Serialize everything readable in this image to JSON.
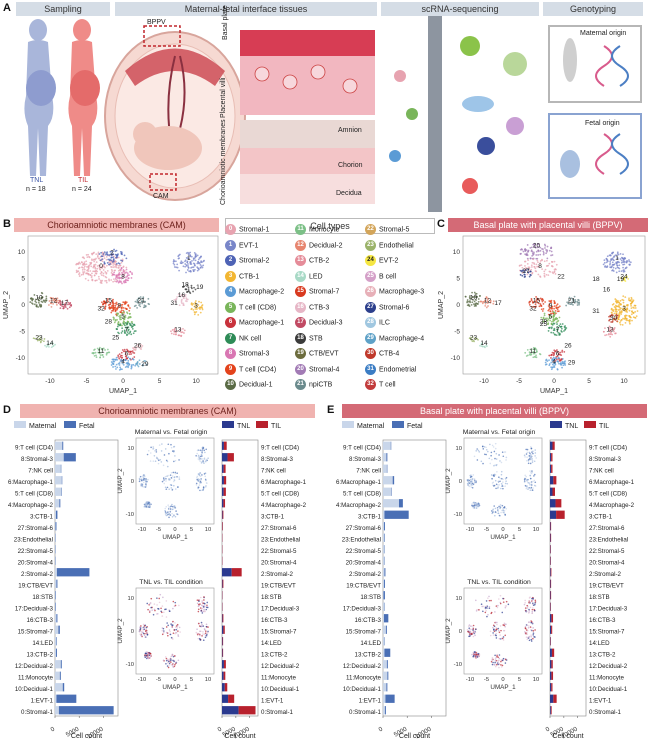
{
  "panelA": {
    "letter": "A",
    "headers": [
      "Sampling",
      "Maternal-fetal interface tissues",
      "scRNA-sequencing",
      "Genotyping"
    ],
    "tnl_label": "TNL",
    "tnl_n": "n = 18",
    "til_label": "TIL",
    "til_n": "n = 24",
    "bppv": "BPPV",
    "cam": "CAM",
    "basal_plate": "Basal plate",
    "placental_villi": "Placental villi",
    "chorioamniotic": "Chorioamniotic membranes",
    "amnion": "Amnion",
    "chorion": "Chorion",
    "decidua": "Decidua",
    "maternal_origin": "Maternal origin",
    "fetal_origin": "Fetal origin"
  },
  "panelB": {
    "letter": "B",
    "title": "Chorioamniotic membranes (CAM)",
    "xlabel": "UMAP_1",
    "ylabel": "UMAP_2",
    "xticks": [
      "-10",
      "-5",
      "0",
      "5",
      "10"
    ],
    "yticks": [
      "10",
      "5",
      "0",
      "-5",
      "-10"
    ],
    "cluster_labels": [
      {
        "t": "0"
      },
      {
        "t": "2"
      },
      {
        "t": "8"
      },
      {
        "t": "1"
      },
      {
        "t": "10"
      },
      {
        "t": "12"
      },
      {
        "t": "17"
      },
      {
        "t": "15"
      },
      {
        "t": "9"
      },
      {
        "t": "32"
      },
      {
        "t": "5"
      },
      {
        "t": "28"
      },
      {
        "t": "7"
      },
      {
        "t": "21"
      },
      {
        "t": "31"
      },
      {
        "t": "16"
      },
      {
        "t": "3"
      },
      {
        "t": "18"
      },
      {
        "t": "19"
      },
      {
        "t": "13"
      },
      {
        "t": "23"
      },
      {
        "t": "14"
      },
      {
        "t": "11"
      },
      {
        "t": "26"
      },
      {
        "t": "6"
      },
      {
        "t": "4"
      },
      {
        "t": "29"
      },
      {
        "t": "25"
      }
    ]
  },
  "legend": {
    "title": "Cell types",
    "items": [
      {
        "n": "0",
        "label": "Stromal-1",
        "color": "#e7a3b0"
      },
      {
        "n": "1",
        "label": "EVT-1",
        "color": "#7986c9"
      },
      {
        "n": "2",
        "label": "Stromal-2",
        "color": "#4e63b5"
      },
      {
        "n": "3",
        "label": "CTB-1",
        "color": "#f2b632"
      },
      {
        "n": "4",
        "label": "Macrophage-2",
        "color": "#5b9bd5"
      },
      {
        "n": "5",
        "label": "T cell (CD8)",
        "color": "#79b55a"
      },
      {
        "n": "6",
        "label": "Macrophage-1",
        "color": "#c8323c"
      },
      {
        "n": "7",
        "label": "NK cell",
        "color": "#2e8b57"
      },
      {
        "n": "8",
        "label": "Stromal-3",
        "color": "#d977b3"
      },
      {
        "n": "9",
        "label": "T cell (CD4)",
        "color": "#e3431c"
      },
      {
        "n": "10",
        "label": "Decidual-1",
        "color": "#5a6b45"
      },
      {
        "n": "11",
        "label": "Monocyte",
        "color": "#7cc087"
      },
      {
        "n": "12",
        "label": "Decidual-2",
        "color": "#e78670"
      },
      {
        "n": "13",
        "label": "CTB-2",
        "color": "#e58c99"
      },
      {
        "n": "14",
        "label": "LED",
        "color": "#a8d9c6"
      },
      {
        "n": "15",
        "label": "Stromal-7",
        "color": "#d8391f"
      },
      {
        "n": "16",
        "label": "CTB-3",
        "color": "#e6b6c6"
      },
      {
        "n": "17",
        "label": "Decidual-3",
        "color": "#c14a63"
      },
      {
        "n": "18",
        "label": "STB",
        "color": "#3b3b3b"
      },
      {
        "n": "19",
        "label": "CTB/EVT",
        "color": "#6d6d3e"
      },
      {
        "n": "20",
        "label": "Stromal-4",
        "color": "#a27bb5"
      },
      {
        "n": "21",
        "label": "npiCTB",
        "color": "#6b8b8d"
      },
      {
        "n": "22",
        "label": "Stromal-5",
        "color": "#d3a55a"
      },
      {
        "n": "23",
        "label": "Endothelial",
        "color": "#9bb36a"
      },
      {
        "n": "24",
        "label": "EVT-2",
        "color": "#f5e642"
      },
      {
        "n": "25",
        "label": "B cell",
        "color": "#d4a0c8"
      },
      {
        "n": "26",
        "label": "Macrophage-3",
        "color": "#e7b0b8"
      },
      {
        "n": "27",
        "label": "Stromal-6",
        "color": "#2c3f8c"
      },
      {
        "n": "28",
        "label": "ILC",
        "color": "#a0c7e0"
      },
      {
        "n": "29",
        "label": "Macrophage-4",
        "color": "#5ea1c7"
      },
      {
        "n": "30",
        "label": "CTB-4",
        "color": "#c0392b"
      },
      {
        "n": "31",
        "label": "Endometrial",
        "color": "#3b7dc4"
      },
      {
        "n": "32",
        "label": "T cell",
        "color": "#c23b3b"
      }
    ]
  },
  "panelC": {
    "letter": "C",
    "title": "Basal plate with placental villi (BPPV)",
    "xlabel": "UMAP_1",
    "ylabel": "UMAP_2",
    "xticks": [
      "-10",
      "-5",
      "0",
      "5",
      "10"
    ],
    "yticks": [
      "10",
      "5",
      "0",
      "-5",
      "-10"
    ],
    "cluster_labels": [
      {
        "t": "20"
      },
      {
        "t": "1"
      },
      {
        "t": "27"
      },
      {
        "t": "8"
      },
      {
        "t": "22"
      },
      {
        "t": "24"
      },
      {
        "t": "18"
      },
      {
        "t": "19"
      },
      {
        "t": "16"
      },
      {
        "t": "10"
      },
      {
        "t": "12"
      },
      {
        "t": "17"
      },
      {
        "t": "15"
      },
      {
        "t": "21"
      },
      {
        "t": "9"
      },
      {
        "t": "32"
      },
      {
        "t": "5"
      },
      {
        "t": "25"
      },
      {
        "t": "28"
      },
      {
        "t": "7"
      },
      {
        "t": "31"
      },
      {
        "t": "3"
      },
      {
        "t": "30"
      },
      {
        "t": "13"
      },
      {
        "t": "23"
      },
      {
        "t": "14"
      },
      {
        "t": "11"
      },
      {
        "t": "26"
      },
      {
        "t": "6"
      },
      {
        "t": "4"
      },
      {
        "t": "29"
      }
    ]
  },
  "panelD": {
    "letter": "D",
    "title": "Chorioamniotic membranes (CAM)",
    "legend_maternal": "Maternal",
    "legend_fetal": "Fetal",
    "legend_tnl": "TNL",
    "legend_til": "TIL",
    "umap_top_title": "Maternal vs. Fetal origin",
    "umap_bottom_title": "TNL vs. TIL condition",
    "xlabel": "Cell count",
    "umap_x": "UMAP_1",
    "umap_y": "UMAP_2",
    "xticks": [
      "0",
      "5000",
      "10000"
    ]
  },
  "panelE": {
    "letter": "E",
    "title": "Basal plate with placental villi (BPPV)",
    "legend_maternal": "Maternal",
    "legend_fetal": "Fetal",
    "legend_tnl": "TNL",
    "legend_til": "TIL",
    "umap_top_title": "Maternal vs. Fetal origin",
    "umap_bottom_title": "TNL vs. TIL condition",
    "xlabel": "Cell count",
    "umap_x": "UMAP_1",
    "umap_y": "UMAP_2",
    "xticks": [
      "0",
      "5000",
      "10000"
    ]
  },
  "chart_data": [
    {
      "type": "bar",
      "title": "Chorioamniotic membranes (CAM) — Maternal vs Fetal",
      "orientation": "horizontal",
      "categories": [
        "9:T cell (CD4)",
        "8:Stromal-3",
        "7:NK cell",
        "6:Macrophage-1",
        "5:T cell (CD8)",
        "4:Macrophage-2",
        "3:CTB-1",
        "27:Stromal-6",
        "23:Endothelial",
        "22:Stromal-5",
        "20:Stromal-4",
        "2:Stromal-2",
        "19:CTB/EVT",
        "18:STB",
        "17:Decidual-3",
        "16:CTB-3",
        "15:Stromal-7",
        "14:LED",
        "13:CTB-2",
        "12:Decidual-2",
        "11:Monocyte",
        "10:Decidual-1",
        "1:EVT-1",
        "0:Stromal-1"
      ],
      "series": [
        {
          "name": "Maternal",
          "color": "#c9d6ea",
          "values": [
            1500,
            1800,
            1200,
            1400,
            1300,
            900,
            200,
            100,
            100,
            100,
            100,
            400,
            300,
            100,
            100,
            300,
            700,
            300,
            200,
            1200,
            1000,
            1600,
            300,
            800
          ]
        },
        {
          "name": "Fetal",
          "color": "#4a6fb5",
          "values": [
            200,
            2500,
            100,
            100,
            100,
            200,
            300,
            200,
            50,
            50,
            50,
            6700,
            200,
            100,
            100,
            200,
            300,
            100,
            200,
            200,
            200,
            300,
            4100,
            11300
          ]
        }
      ],
      "xlabel": "Cell count",
      "xlim": [
        0,
        13000
      ]
    },
    {
      "type": "bar",
      "title": "Chorioamniotic membranes (CAM) — TNL vs TIL",
      "orientation": "horizontal",
      "categories": [
        "9:T cell (CD4)",
        "8:Stromal-3",
        "7:NK cell",
        "6:Macrophage-1",
        "5:T cell (CD8)",
        "4:Macrophage-2",
        "3:CTB-1",
        "27:Stromal-6",
        "23:Endothelial",
        "22:Stromal-5",
        "20:Stromal-4",
        "2:Stromal-2",
        "19:CTB/EVT",
        "18:STB",
        "17:Decidual-3",
        "16:CTB-3",
        "15:Stromal-7",
        "14:LED",
        "13:CTB-2",
        "12:Decidual-2",
        "11:Monocyte",
        "10:Decidual-1",
        "1:EVT-1",
        "0:Stromal-1"
      ],
      "series": [
        {
          "name": "TNL",
          "color": "#2b3a8f",
          "values": [
            700,
            2000,
            600,
            700,
            600,
            500,
            200,
            100,
            50,
            50,
            50,
            3500,
            200,
            100,
            100,
            200,
            500,
            200,
            200,
            700,
            600,
            1000,
            2200,
            6000
          ]
        },
        {
          "name": "TIL",
          "color": "#b8212d",
          "values": [
            1000,
            2300,
            700,
            800,
            800,
            600,
            300,
            200,
            100,
            100,
            100,
            3600,
            300,
            100,
            100,
            300,
            500,
            200,
            200,
            700,
            600,
            900,
            2200,
            6100
          ]
        }
      ],
      "xlabel": "Cell count",
      "xlim": [
        0,
        13000
      ]
    },
    {
      "type": "bar",
      "title": "Basal plate with placental villi (BPPV) — Maternal vs Fetal",
      "orientation": "horizontal",
      "categories": [
        "9:T cell (CD4)",
        "8:Stromal-3",
        "7:NK cell",
        "6:Macrophage-1",
        "5:T cell (CD8)",
        "4:Macrophage-2",
        "3:CTB-1",
        "27:Stromal-6",
        "23:Endothelial",
        "22:Stromal-5",
        "20:Stromal-4",
        "2:Stromal-2",
        "19:CTB/EVT",
        "18:STB",
        "17:Decidual-3",
        "16:CTB-3",
        "15:Stromal-7",
        "14:LED",
        "13:CTB-2",
        "12:Decidual-2",
        "11:Monocyte",
        "10:Decidual-1",
        "1:EVT-1",
        "0:Stromal-1"
      ],
      "series": [
        {
          "name": "Maternal",
          "color": "#c9d6ea",
          "values": [
            1600,
            700,
            800,
            2000,
            1700,
            3300,
            300,
            200,
            300,
            200,
            200,
            300,
            200,
            100,
            200,
            200,
            600,
            200,
            300,
            800,
            900,
            700,
            500,
            400
          ]
        },
        {
          "name": "Fetal",
          "color": "#4a6fb5",
          "values": [
            100,
            200,
            100,
            300,
            100,
            800,
            5000,
            200,
            100,
            100,
            100,
            200,
            200,
            300,
            100,
            900,
            200,
            100,
            1200,
            200,
            200,
            200,
            1900,
            200
          ]
        }
      ],
      "xlabel": "Cell count",
      "xlim": [
        0,
        13000
      ]
    },
    {
      "type": "bar",
      "title": "Basal plate with placental villi (BPPV) — TNL vs TIL",
      "orientation": "horizontal",
      "categories": [
        "9:T cell (CD4)",
        "8:Stromal-3",
        "7:NK cell",
        "6:Macrophage-1",
        "5:T cell (CD8)",
        "4:Macrophage-2",
        "3:CTB-1",
        "27:Stromal-6",
        "23:Endothelial",
        "22:Stromal-5",
        "20:Stromal-4",
        "2:Stromal-2",
        "19:CTB/EVT",
        "18:STB",
        "17:Decidual-3",
        "16:CTB-3",
        "15:Stromal-7",
        "14:LED",
        "13:CTB-2",
        "12:Decidual-2",
        "11:Monocyte",
        "10:Decidual-1",
        "1:EVT-1",
        "0:Stromal-1"
      ],
      "series": [
        {
          "name": "TNL",
          "color": "#2b3a8f",
          "values": [
            900,
            400,
            400,
            1200,
            900,
            2000,
            2200,
            200,
            200,
            150,
            150,
            250,
            200,
            200,
            150,
            500,
            400,
            150,
            700,
            500,
            500,
            450,
            1200,
            300
          ]
        },
        {
          "name": "TIL",
          "color": "#b8212d",
          "values": [
            800,
            500,
            500,
            1100,
            900,
            2100,
            3100,
            200,
            200,
            150,
            150,
            250,
            200,
            200,
            150,
            600,
            400,
            150,
            800,
            500,
            600,
            450,
            1200,
            300
          ]
        }
      ],
      "xlabel": "Cell count",
      "xlim": [
        0,
        13000
      ]
    }
  ]
}
